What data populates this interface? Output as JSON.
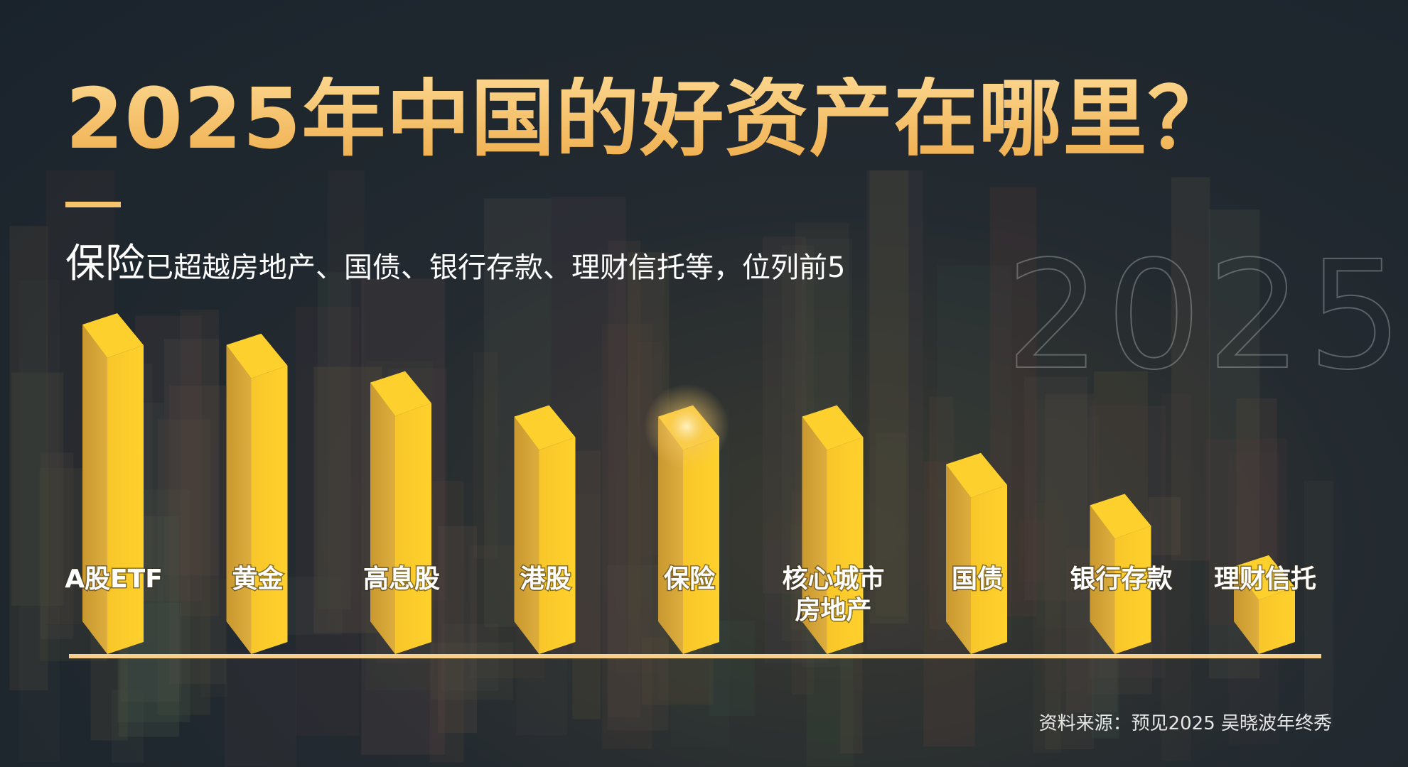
{
  "title": "2025年中国的好资产在哪里？",
  "subtitle": {
    "highlight": "保险",
    "rest": "已超越房地产、国债、银行存款、理财信托等，位列前5"
  },
  "watermark": "2025",
  "source": "资料来源：预见2025 吴晓波年终秀",
  "colors": {
    "title": "#F7C46E",
    "bar_light": "#FCCB2A",
    "bar_dark": "#D2A23A",
    "baseline": "#F7D08A",
    "background": "#1E2830"
  },
  "chart_data": {
    "type": "bar",
    "style": "3d-column",
    "title": "",
    "xlabel": "",
    "ylabel": "",
    "axis": "none",
    "grid": false,
    "categories": [
      "A股ETF",
      "黄金",
      "高息股",
      "港股",
      "保险",
      "核心城市\n房地产",
      "国债",
      "银行存款",
      "理财信托"
    ],
    "values": [
      100,
      94,
      83,
      73,
      73,
      73,
      59,
      47,
      29
    ],
    "highlight": "保险"
  }
}
